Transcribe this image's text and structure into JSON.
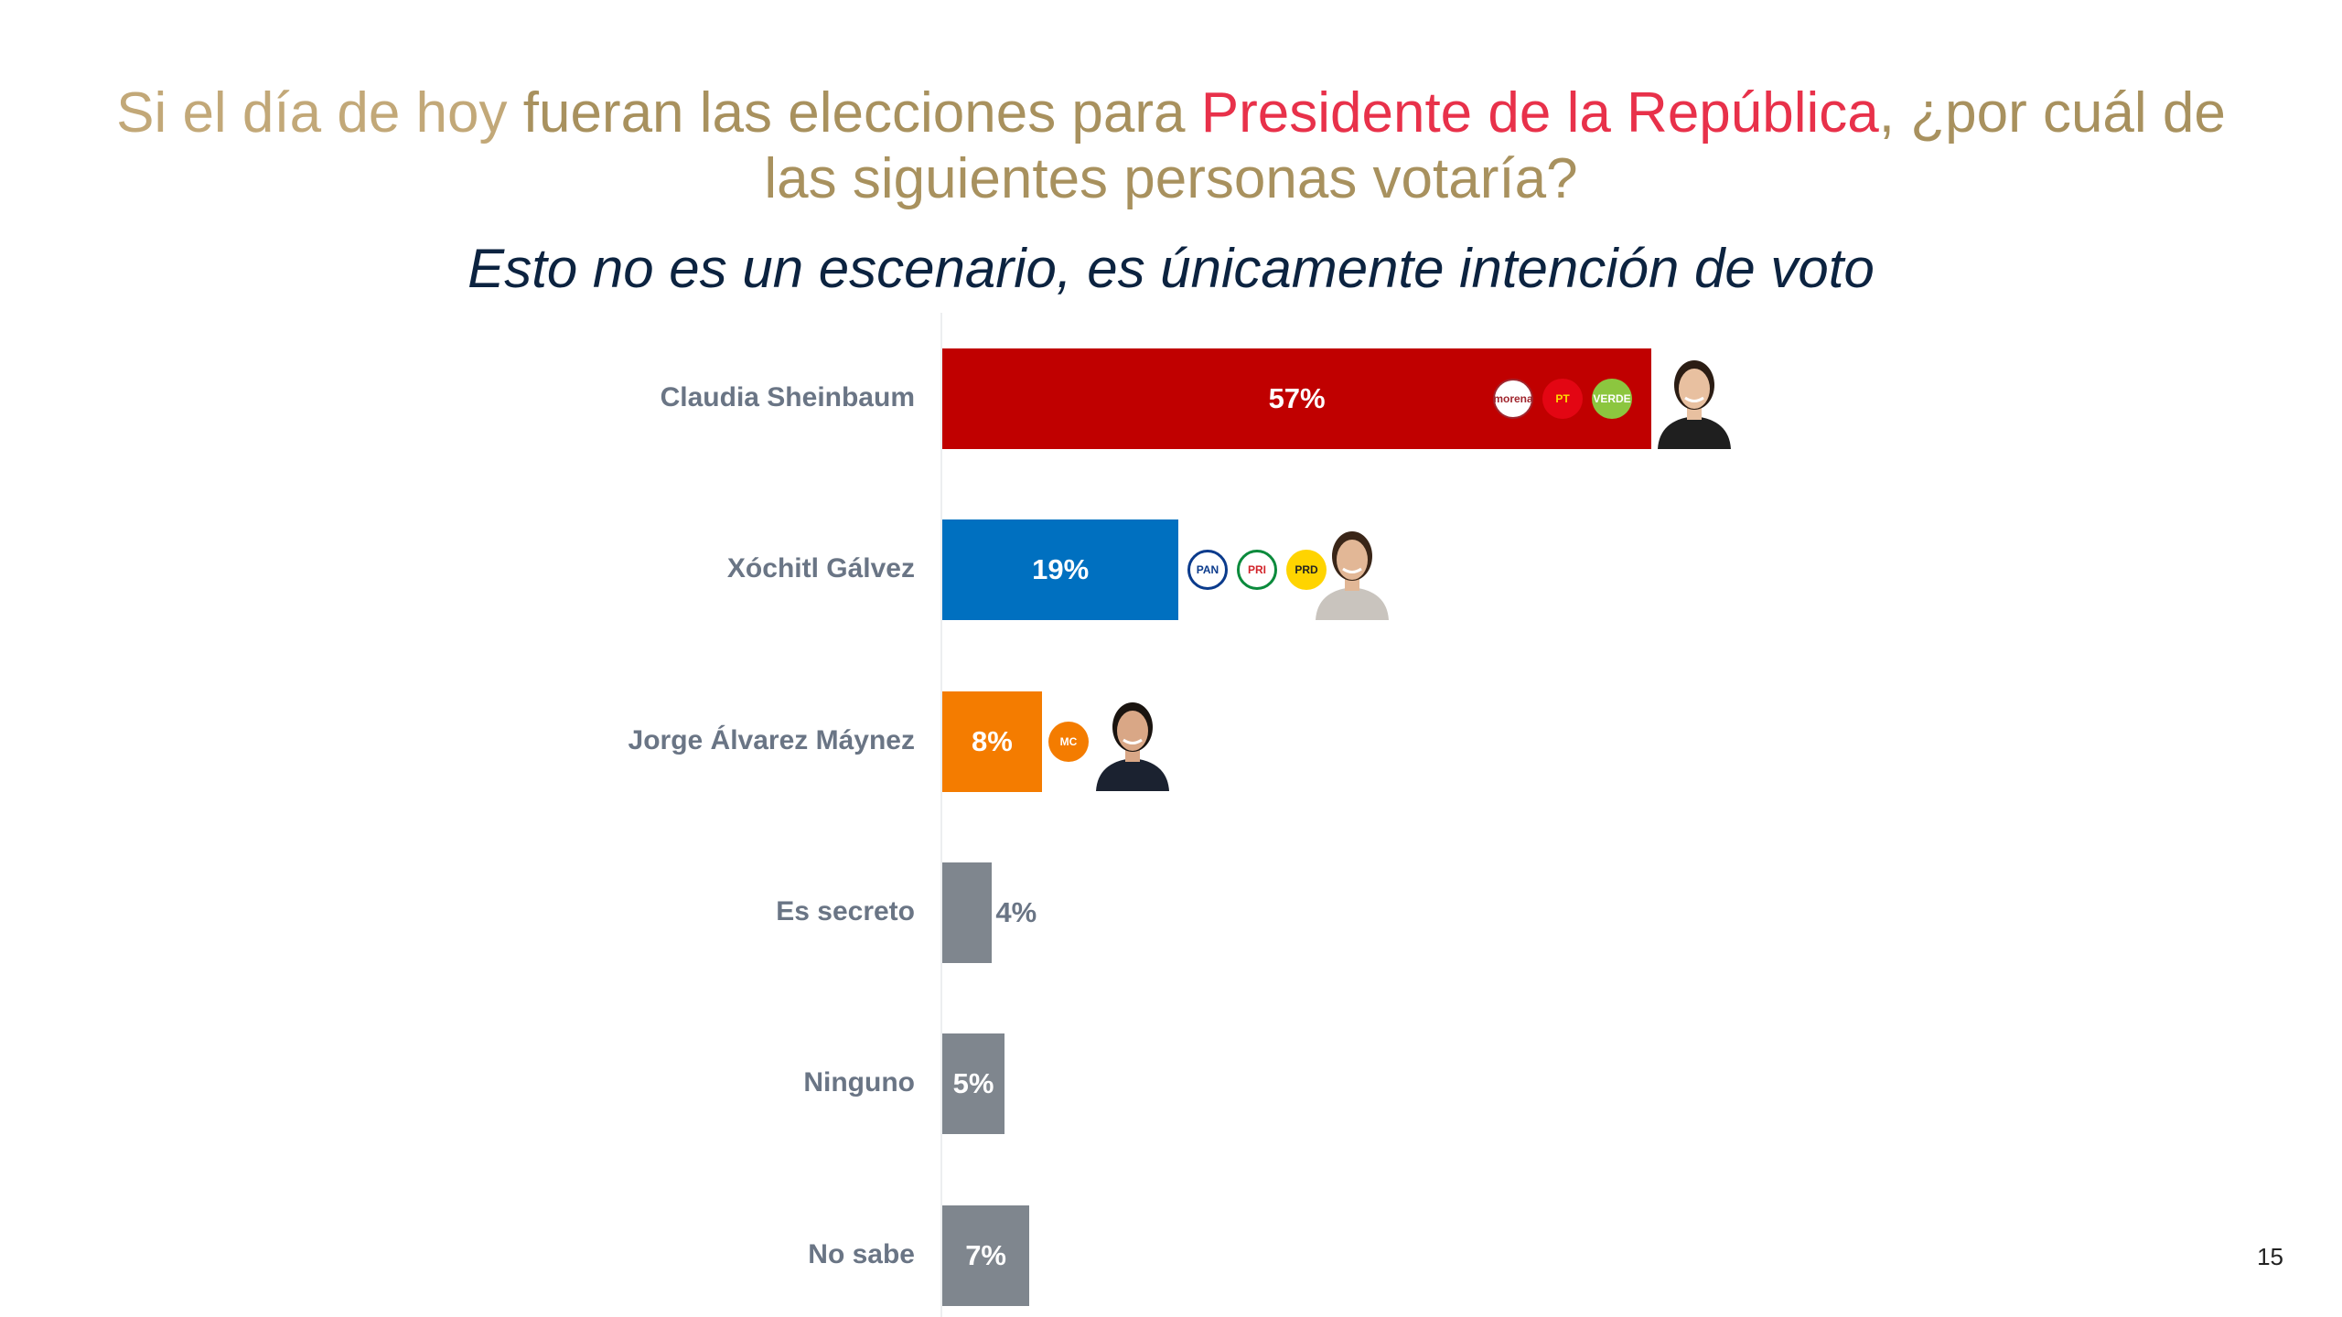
{
  "title": {
    "part1": "Si el día de hoy ",
    "part2": "fueran las elecciones para ",
    "part3": "Presidente de la República",
    "part4": ", ¿por cuál de las siguientes personas votaría?"
  },
  "subtitle": "Esto no es un escenario, es únicamente intención de voto",
  "page_number": "15",
  "colors": {
    "sheinbaum": "#c00000",
    "galvez": "#0070c0",
    "maynez": "#f47c00",
    "other": "#7f868e"
  },
  "chart_data": {
    "type": "bar",
    "orientation": "horizontal",
    "categories": [
      "Claudia Sheinbaum",
      "Xóchitl Gálvez",
      "Jorge Álvarez Máynez",
      "Es secreto",
      "Ninguno",
      "No sabe"
    ],
    "values": [
      57,
      19,
      8,
      4,
      5,
      7
    ],
    "value_labels": [
      "57%",
      "19%",
      "8%",
      "4%",
      "5%",
      "7%"
    ],
    "unit": "%",
    "xlim": [
      0,
      100
    ],
    "grid": false,
    "legend": "none",
    "party_logos": [
      [
        "morena",
        "PT",
        "VERDE"
      ],
      [
        "PAN",
        "PRI",
        "PRD"
      ],
      [
        "MOVIMIENTO CIUDADANO"
      ],
      [],
      [],
      []
    ]
  }
}
